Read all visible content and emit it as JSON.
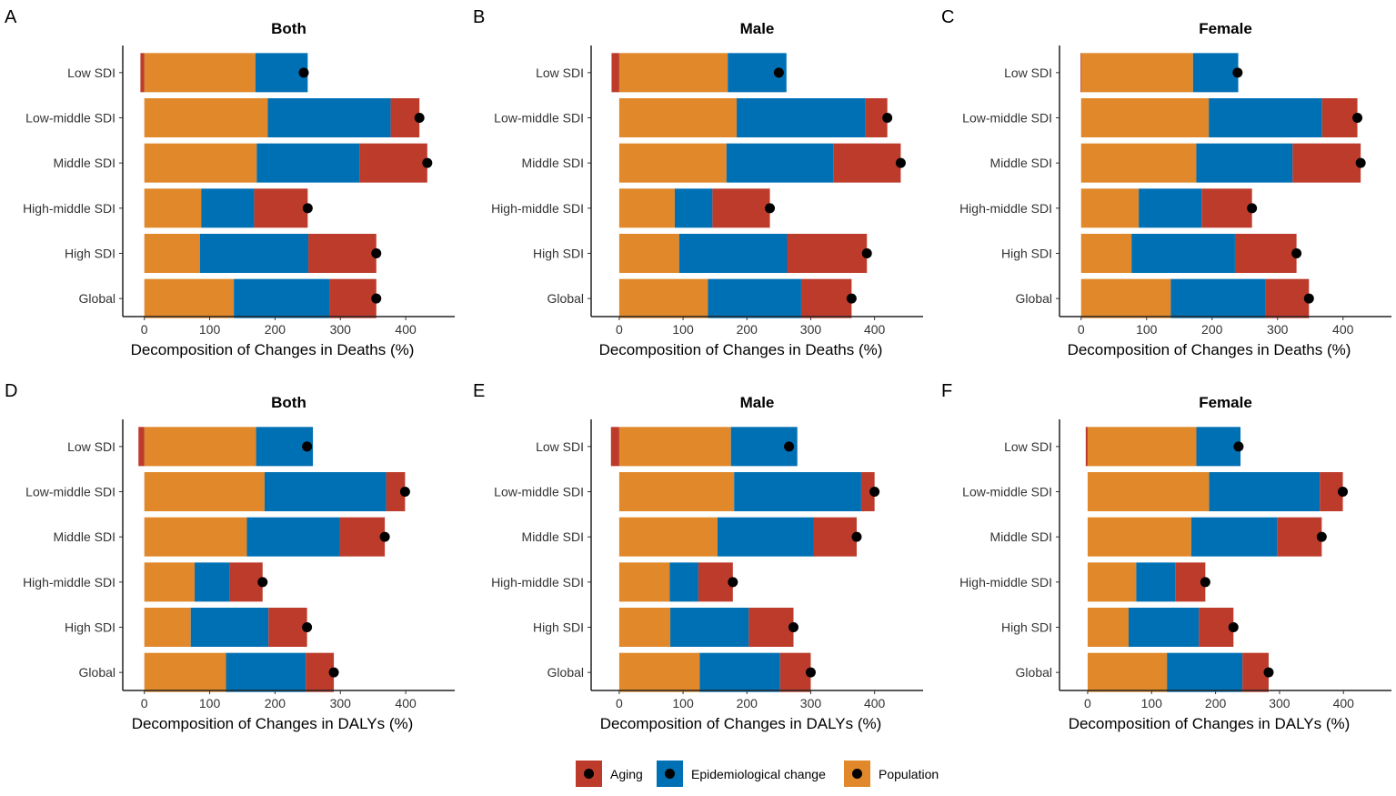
{
  "chart_data": {
    "type": "bar",
    "orientation": "horizontal-stacked",
    "categories": [
      "Low SDI",
      "Low-middle SDI",
      "Middle SDI",
      "High-middle SDI",
      "High SDI",
      "Global"
    ],
    "x_ticks": [
      0,
      100,
      200,
      300,
      400
    ],
    "colors": {
      "Aging": "#BD3B2A",
      "Epidemiological change": "#0070B5",
      "Population": "#E0882A",
      "total_point": "#000000"
    },
    "legend": {
      "placement": "bottom",
      "entries": [
        "Aging",
        "Epidemiological change",
        "Population"
      ]
    },
    "grid": false,
    "panels": [
      {
        "letter": "A",
        "title": "Both",
        "xlabel": "Decomposition of Changes in Deaths (%)",
        "xlim": [
          -33,
          475
        ],
        "series": [
          {
            "name": "Population",
            "values": [
              170,
              189,
              172,
              87,
              85,
              137
            ]
          },
          {
            "name": "Epidemiological change",
            "values": [
              80,
              188,
              157,
              81,
              166,
              146
            ]
          },
          {
            "name": "Aging",
            "values": [
              -6,
              44,
              104,
              82,
              104,
              72
            ]
          }
        ]
      },
      {
        "letter": "B",
        "title": "Male",
        "xlabel": "Decomposition of Changes in Deaths (%)",
        "xlim": [
          -44,
          476
        ],
        "series": [
          {
            "name": "Population",
            "values": [
              170,
              184,
              168,
              87,
              94,
              139
            ]
          },
          {
            "name": "Epidemiological change",
            "values": [
              92,
              202,
              168,
              59,
              169,
              146
            ]
          },
          {
            "name": "Aging",
            "values": [
              -12,
              34,
              105,
              90,
              125,
              79
            ]
          }
        ]
      },
      {
        "letter": "C",
        "title": "Female",
        "xlabel": "Decomposition of Changes in Deaths (%)",
        "xlim": [
          -33,
          474
        ],
        "series": [
          {
            "name": "Population",
            "values": [
              171,
              195,
              176,
              88,
              77,
              137
            ]
          },
          {
            "name": "Epidemiological change",
            "values": [
              69,
              173,
              147,
              96,
              158,
              144
            ]
          },
          {
            "name": "Aging",
            "values": [
              -1,
              54,
              104,
              77,
              94,
              67
            ]
          }
        ]
      },
      {
        "letter": "D",
        "title": "Both",
        "xlabel": "Decomposition of Changes in DALYs (%)",
        "xlim": [
          -33,
          475
        ],
        "series": [
          {
            "name": "Population",
            "values": [
              171,
              184,
              157,
              77,
              71,
              125
            ]
          },
          {
            "name": "Epidemiological change",
            "values": [
              87,
              186,
              142,
              54,
              119,
              122
            ]
          },
          {
            "name": "Aging",
            "values": [
              -9,
              29,
              69,
              50,
              59,
              43
            ]
          }
        ]
      },
      {
        "letter": "E",
        "title": "Male",
        "xlabel": "Decomposition of Changes in DALYs (%)",
        "xlim": [
          -44,
          476
        ],
        "series": [
          {
            "name": "Population",
            "values": [
              175,
              180,
              154,
              79,
              80,
              126
            ]
          },
          {
            "name": "Epidemiological change",
            "values": [
              104,
              199,
              151,
              45,
              123,
              126
            ]
          },
          {
            "name": "Aging",
            "values": [
              -13,
              21,
              67,
              54,
              70,
              48
            ]
          }
        ]
      },
      {
        "letter": "F",
        "title": "Female",
        "xlabel": "Decomposition of Changes in DALYs (%)",
        "xlim": [
          -44,
          475
        ],
        "series": [
          {
            "name": "Population",
            "values": [
              170,
              190,
              162,
              76,
              64,
              124
            ]
          },
          {
            "name": "Epidemiological change",
            "values": [
              69,
              173,
              134,
              61,
              110,
              118
            ]
          },
          {
            "name": "Aging",
            "values": [
              -3,
              36,
              70,
              47,
              54,
              41
            ]
          }
        ]
      }
    ]
  }
}
